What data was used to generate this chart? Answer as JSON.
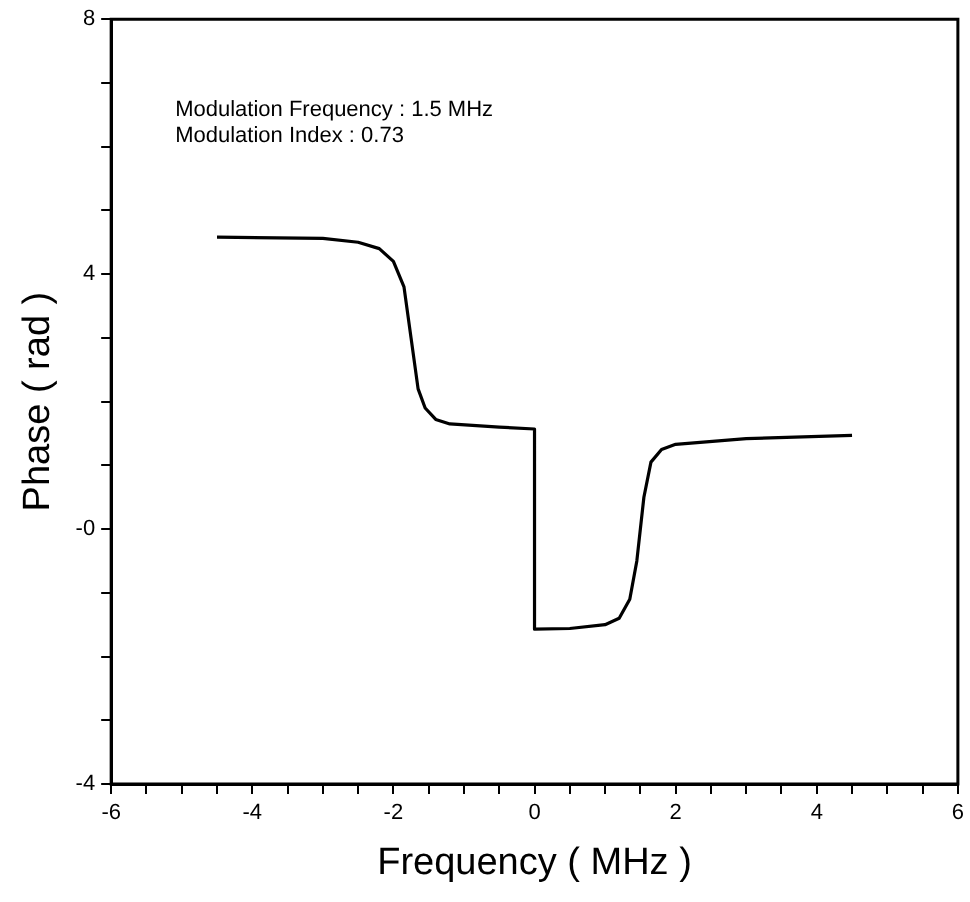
{
  "chart_data": {
    "type": "line",
    "xlabel": "Frequency ( MHz )",
    "ylabel": "Phase ( rad )",
    "annotations": [
      "Modulation Frequency : 1.5 MHz",
      "Modulation Index : 0.73"
    ],
    "xlim": [
      -6,
      6
    ],
    "xticks": [
      -6,
      {
        "value": -5.5,
        "label": null
      },
      {
        "value": -5,
        "label": null
      },
      {
        "value": -4.5,
        "label": null
      },
      -4,
      {
        "value": -3.5,
        "label": null
      },
      {
        "value": -3,
        "label": null
      },
      {
        "value": -2.5,
        "label": null
      },
      -2,
      {
        "value": -1.5,
        "label": null
      },
      {
        "value": -1,
        "label": null
      },
      {
        "value": -0.5,
        "label": null
      },
      0,
      {
        "value": 0.5,
        "label": null
      },
      {
        "value": 1,
        "label": null
      },
      {
        "value": 1.5,
        "label": null
      },
      2,
      {
        "value": 2.5,
        "label": null
      },
      {
        "value": 3,
        "label": null
      },
      {
        "value": 3.5,
        "label": null
      },
      4,
      {
        "value": 4.5,
        "label": null
      },
      {
        "value": 5,
        "label": null
      },
      {
        "value": 5.5,
        "label": null
      },
      6
    ],
    "ylim": [
      -4,
      8
    ],
    "yticks": [
      -4,
      {
        "value": -3,
        "label": null
      },
      {
        "value": -2,
        "label": null
      },
      {
        "value": -1,
        "label": null
      },
      {
        "value": 0,
        "label": "-0"
      },
      {
        "value": 1,
        "label": null
      },
      {
        "value": 2,
        "label": null
      },
      {
        "value": 3,
        "label": null
      },
      4,
      {
        "value": 5,
        "label": null
      },
      {
        "value": 6,
        "label": null
      },
      {
        "value": 7,
        "label": null
      },
      8
    ],
    "grid": false,
    "legend": false,
    "marker": "none",
    "line_style": "solid",
    "series": [
      {
        "color": "#000000",
        "x": [
          -4.5,
          -3,
          -2.5,
          -2.2,
          -2,
          -1.85,
          -1.75,
          -1.65,
          -1.55,
          -1.4,
          -1.2,
          -0.5,
          0,
          0,
          0.5,
          1,
          1.2,
          1.35,
          1.45,
          1.55,
          1.65,
          1.8,
          2,
          3,
          4.5
        ],
        "values": [
          4.58,
          4.56,
          4.5,
          4.4,
          4.2,
          3.8,
          3,
          2.2,
          1.9,
          1.72,
          1.65,
          1.6,
          1.57,
          -1.57,
          -1.56,
          -1.5,
          -1.4,
          -1.1,
          -0.5,
          0.5,
          1.05,
          1.25,
          1.33,
          1.42,
          1.47
        ]
      }
    ]
  }
}
